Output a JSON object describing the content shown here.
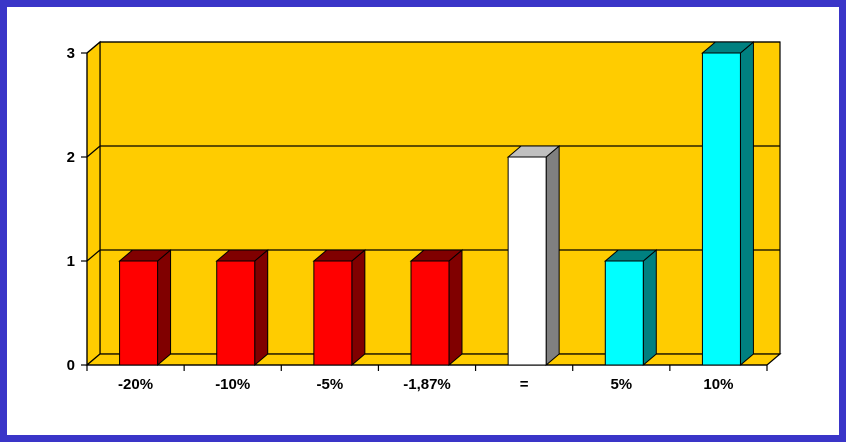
{
  "chart_data": {
    "type": "bar",
    "style": "3d",
    "title": "",
    "xlabel": "",
    "ylabel": "",
    "categories": [
      "-20%",
      "-10%",
      "-5%",
      "-1,87%",
      "=",
      "5%",
      "10%"
    ],
    "values": [
      1,
      1,
      1,
      1,
      2,
      1,
      3
    ],
    "ylim": [
      0,
      3
    ],
    "yticks": [
      "0",
      "1",
      "2",
      "3"
    ],
    "grid": true,
    "legend": "none",
    "bar_colors": [
      "#ff0000",
      "#ff0000",
      "#ff0000",
      "#ff0000",
      "#ffffff",
      "#00ffff",
      "#00ffff"
    ],
    "bar_side_colors": [
      "#800000",
      "#800000",
      "#800000",
      "#800000",
      "#808080",
      "#008080",
      "#008080"
    ],
    "plot_background": "#ffcc00",
    "border_color": "#3a35c8"
  }
}
